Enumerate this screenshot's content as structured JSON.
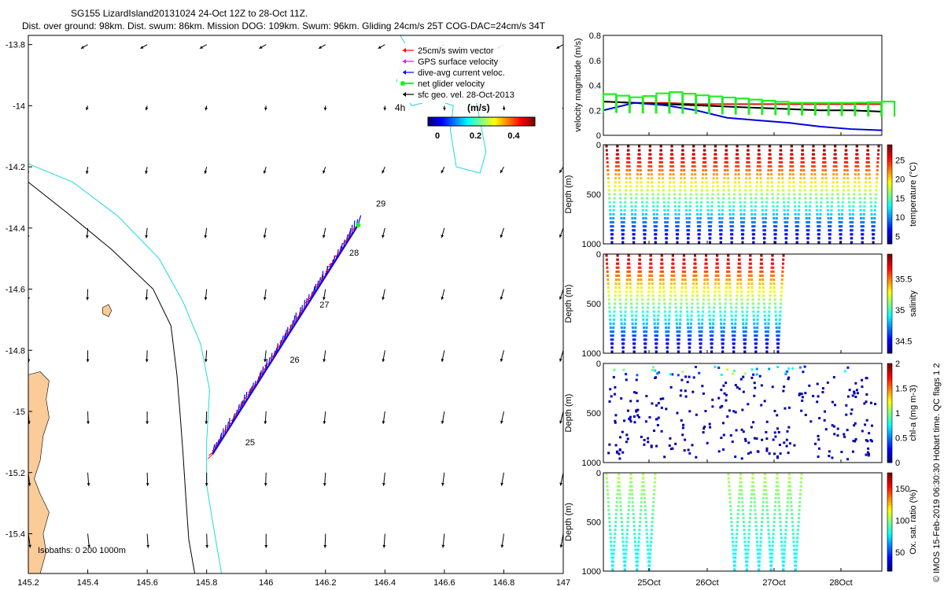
{
  "header": {
    "title": "SG155 LizardIsland20131024 24-Oct 12Z to 28-Oct 11Z.",
    "subtitle": "Dist. over ground: 98km. Dist. swum: 86km. Mission DOG: 109km. Swum: 96km. Gliding 24cm/s 25T COG-DAC=24cm/s 34T"
  },
  "credit": "© IMOS 15-Feb-2019 06:30:30 Hobart time. QC flags 1  2",
  "colors": {
    "land": "#fbcb98",
    "isobath_200": "#1fd8e0",
    "isobath_1000": "#000000",
    "swim_vector": "#ff0000",
    "gps_velocity": "#ff00ff",
    "dac_velocity": "#0000ff",
    "net_velocity": "#00ff00",
    "sfc_geo": "#000000",
    "velocity_magnitude_red": "#e01010",
    "velocity_magnitude_black": "#000000",
    "velocity_magnitude_blue": "#0000dd",
    "velocity_magnitude_green": "#22ee22"
  },
  "map": {
    "xticks": [
      "145.2",
      "145.4",
      "145.6",
      "145.8",
      "146",
      "146.2",
      "146.4",
      "146.6",
      "146.8",
      "147"
    ],
    "yticks": [
      "-13.8",
      "-14",
      "-14.2",
      "-14.4",
      "-14.6",
      "-14.8",
      "-15",
      "-15.2",
      "-15.4"
    ],
    "xlim": [
      145.2,
      147.0
    ],
    "ylim": [
      -15.53,
      -13.77
    ],
    "legend": [
      {
        "label": "25cm/s swim vector",
        "icon": "red-arrow-left"
      },
      {
        "label": "GPS surface velocity",
        "icon": "magenta-arrow-left"
      },
      {
        "label": "dive-avg current veloc.",
        "icon": "blue-arrow-left"
      },
      {
        "label": "net glider velocity",
        "icon": "green-dot-line"
      },
      {
        "label": "sfc geo. vel. 28-Oct-2013",
        "icon": "black-arrow-left"
      }
    ],
    "colorbar_title": "(m/s)",
    "colorbar_ticks": [
      "0",
      "0.2",
      "0.4"
    ],
    "offset_label": "4h",
    "isobath_label": "Isobaths: 0   200  1000m",
    "track_day_labels": [
      {
        "text": "25",
        "lon": 145.93,
        "lat": -15.11
      },
      {
        "text": "26",
        "lon": 146.08,
        "lat": -14.84
      },
      {
        "text": "27",
        "lon": 146.18,
        "lat": -14.66
      },
      {
        "text": "28",
        "lon": 146.28,
        "lat": -14.49
      },
      {
        "text": "29",
        "lon": 146.37,
        "lat": -14.33
      }
    ],
    "track_start": {
      "lon": 145.82,
      "lat": -15.14
    },
    "track_end": {
      "lon": 146.31,
      "lat": -14.39
    }
  },
  "panels": {
    "velocity": {
      "ylabel": "velocity magnitude (m/s)",
      "yticks": [
        "0",
        "0.2",
        "0.4",
        "0.6",
        "0.8"
      ],
      "ylim": [
        0,
        0.8
      ]
    },
    "temperature": {
      "ylabel": "Depth (m)",
      "yticks": [
        "0",
        "500",
        "1000"
      ],
      "cblabel": "temperature (°C)",
      "cbticks": [
        "5",
        "10",
        "15",
        "20",
        "25"
      ],
      "clim": [
        3,
        29
      ]
    },
    "salinity": {
      "ylabel": "Depth (m)",
      "yticks": [
        "0",
        "500",
        "1000"
      ],
      "cblabel": "salinity",
      "cbticks": [
        "34.5",
        "35",
        "35.5"
      ],
      "clim": [
        34.3,
        35.9
      ]
    },
    "chla": {
      "ylabel": "Depth (m)",
      "yticks": [
        "0",
        "500",
        "1000"
      ],
      "cblabel": "chl-a (mg m-3)",
      "cbticks": [
        "0",
        "0.5",
        "1",
        "1.5",
        "2"
      ],
      "clim": [
        0,
        2
      ]
    },
    "oxygen": {
      "ylabel": "Depth (m)",
      "yticks": [
        "0",
        "500",
        "1000"
      ],
      "cblabel": "Ox. sat. ratio (%)",
      "cbticks": [
        "50",
        "100",
        "150"
      ],
      "clim": [
        20,
        175
      ]
    },
    "time_ticks": [
      "25Oct",
      "26Oct",
      "27Oct",
      "28Oct"
    ]
  },
  "chart_data": [
    {
      "type": "line",
      "title": "velocity magnitude",
      "ylabel": "velocity magnitude (m/s)",
      "ylim": [
        0,
        0.8
      ],
      "x_start": "24-Oct 12Z",
      "x_end": "28-Oct 11Z",
      "series": [
        {
          "values": [
            0.27,
            0.26,
            0.26,
            0.25,
            0.25,
            0.25,
            0.25,
            0.25,
            0.25,
            0.25
          ]
        },
        {
          "values": [
            0.27,
            0.26,
            0.25,
            0.24,
            0.23,
            0.22,
            0.21,
            0.2,
            0.2,
            0.19
          ]
        },
        {
          "values": [
            0.2,
            0.26,
            0.24,
            0.2,
            0.14,
            0.12,
            0.1,
            0.07,
            0.05,
            0.04
          ]
        },
        {
          "values": [
            0.33,
            0.3,
            0.35,
            0.32,
            0.3,
            0.28,
            0.26,
            0.26,
            0.26,
            0.27
          ]
        }
      ]
    },
    {
      "type": "scatter",
      "title": "temperature section",
      "ylabel": "Depth (m)",
      "ylim": [
        1000,
        0
      ],
      "colorbar": "temperature (°C)",
      "profiles": 25,
      "surface_value": 28,
      "bottom_value": 4
    },
    {
      "type": "scatter",
      "title": "salinity section",
      "ylabel": "Depth (m)",
      "ylim": [
        1000,
        0
      ],
      "colorbar": "salinity",
      "profiles": 16,
      "surface_value": 35.7,
      "bottom_value": 34.4
    },
    {
      "type": "scatter",
      "title": "chl-a section",
      "ylabel": "Depth (m)",
      "ylim": [
        1000,
        0
      ],
      "colorbar": "chl-a (mg m-3)",
      "typical_value": 0.05,
      "surface_value": 0.8
    },
    {
      "type": "scatter",
      "title": "oxygen saturation section",
      "ylabel": "Depth (m)",
      "ylim": [
        1000,
        0
      ],
      "colorbar": "Ox. sat. ratio (%)",
      "surface_value": 110,
      "deep_value": 75
    }
  ]
}
